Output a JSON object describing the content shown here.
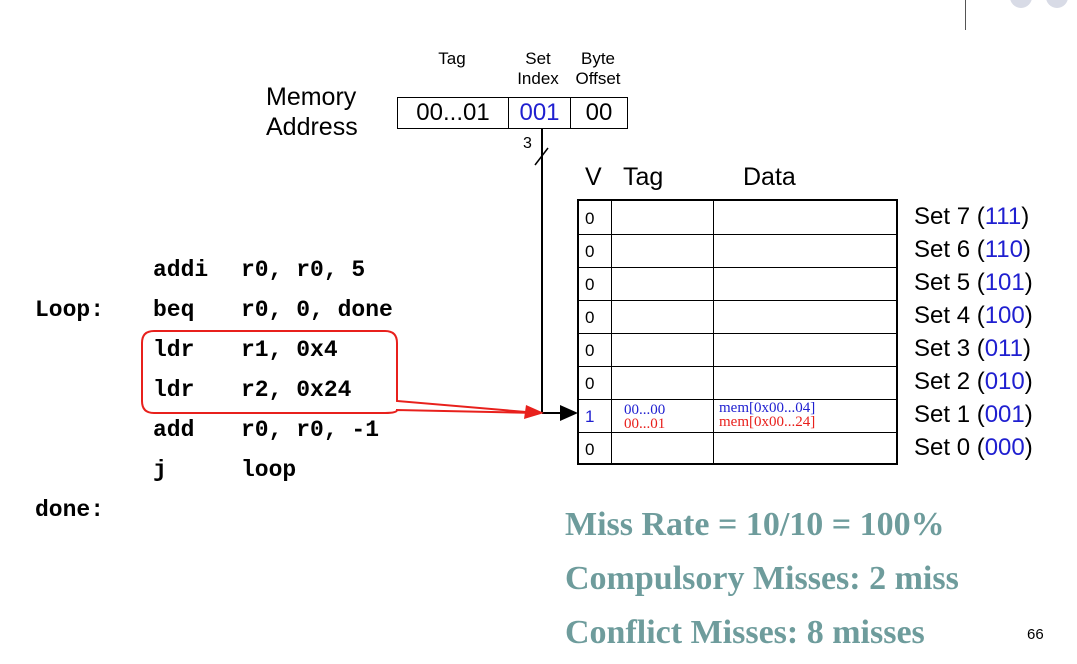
{
  "address": {
    "label_line1": "Memory",
    "label_line2": "Address",
    "fields": [
      {
        "header_line1": "",
        "header_line2": "Tag",
        "value": "00...01"
      },
      {
        "header_line1": "Set",
        "header_line2": "Index",
        "value": "001"
      },
      {
        "header_line1": "Byte",
        "header_line2": "Offset",
        "value": "00"
      }
    ],
    "index_bits": "3"
  },
  "cache": {
    "headers": {
      "v": "V",
      "tag": "Tag",
      "data": "Data"
    },
    "sets": [
      {
        "v": "0",
        "label": "Set 7 (",
        "bits": "111",
        "close": ")"
      },
      {
        "v": "0",
        "label": "Set 6 (",
        "bits": "110",
        "close": ")"
      },
      {
        "v": "0",
        "label": "Set 5 (",
        "bits": "101",
        "close": ")"
      },
      {
        "v": "0",
        "label": "Set 4 (",
        "bits": "100",
        "close": ")"
      },
      {
        "v": "0",
        "label": "Set 3 (",
        "bits": "011",
        "close": ")"
      },
      {
        "v": "0",
        "label": "Set 2 (",
        "bits": "010",
        "close": ")"
      },
      {
        "v": "1",
        "label": "Set 1 (",
        "bits": "001",
        "close": ")"
      },
      {
        "v": "0",
        "label": "Set 0 (",
        "bits": "000",
        "close": ")"
      }
    ],
    "set1_entry": {
      "tag_old": "00...00",
      "tag_new": "00...01",
      "data_old": "mem[0x00...04]",
      "data_new": "mem[0x00...24]"
    }
  },
  "code": {
    "lines": [
      {
        "label": "",
        "op": "addi",
        "args": "r0, r0, 5"
      },
      {
        "label": "Loop:",
        "op": "beq",
        "args": "r0, 0, done"
      },
      {
        "label": "",
        "op": "ldr",
        "args": "r1, 0x4"
      },
      {
        "label": "",
        "op": "ldr",
        "args": "r2, 0x24"
      },
      {
        "label": "",
        "op": "add",
        "args": "r0, r0, -1"
      },
      {
        "label": "",
        "op": "j",
        "args": "loop"
      },
      {
        "label": "done:",
        "op": "",
        "args": ""
      }
    ]
  },
  "stats": {
    "miss_rate": "Miss Rate = 10/10 = 100%",
    "compulsory": "Compulsory Misses: 2 miss",
    "conflict": "Conflict Misses: 8 misses"
  },
  "page_number": "66",
  "colors": {
    "blue": "#1f1fd0",
    "red": "#e8201c",
    "teal": "#6e9c9c"
  }
}
